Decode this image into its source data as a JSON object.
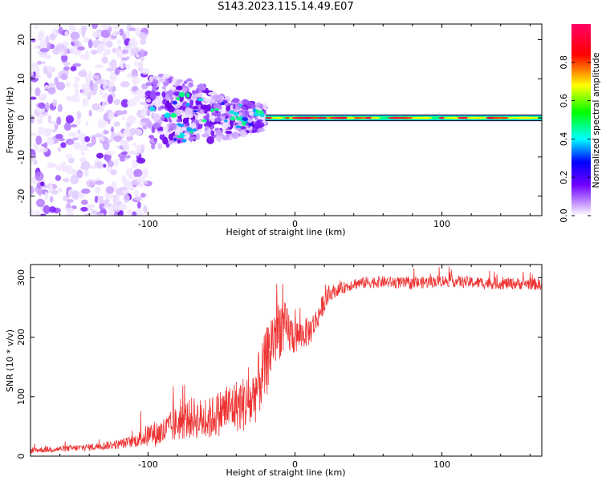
{
  "chart_data": [
    {
      "type": "heatmap",
      "title": "S143.2023.115.14.49.E07",
      "xlabel": "Height of straight line (km)",
      "ylabel": "Frequency (Hz)",
      "xlim": [
        -180,
        168
      ],
      "ylim": [
        -25,
        24
      ],
      "xticks": [
        "-100",
        "0",
        "100"
      ],
      "xtick_values": [
        -100,
        0,
        100
      ],
      "yticks": [
        "-20",
        "-10",
        "0",
        "10",
        "20"
      ],
      "ytick_values": [
        -20,
        -10,
        0,
        10,
        20
      ],
      "colorbar": {
        "label": "Normalized spectral amplitude",
        "range": [
          0,
          1
        ],
        "ticks": [
          "0.0",
          "0.2",
          "0.4",
          "0.6",
          "0.8"
        ],
        "tick_values": [
          0.0,
          0.2,
          0.4,
          0.6,
          0.8
        ],
        "colormap": [
          "#f0f0f8",
          "#8000ff",
          "#0000ff",
          "#00ffff",
          "#00ff00",
          "#ffff00",
          "#ff0000",
          "#ff0080"
        ]
      },
      "features": [
        {
          "x_range": [
            -180,
            -100
          ],
          "freq_spread": 24,
          "level": 0.12
        },
        {
          "x_range": [
            -100,
            -20
          ],
          "freq_spread_start": 10,
          "freq_spread_end": 3,
          "level": 0.3
        },
        {
          "x_range": [
            -20,
            168
          ],
          "freq": 0,
          "level": 0.75
        }
      ]
    },
    {
      "type": "line",
      "title": "",
      "xlabel": "Height of straight line (km)",
      "ylabel": "SNR (10 * v/v)",
      "xlim": [
        -180,
        168
      ],
      "ylim": [
        0,
        322
      ],
      "xticks": [
        "-100",
        "0",
        "100"
      ],
      "xtick_values": [
        -100,
        0,
        100
      ],
      "yticks": [
        "0",
        "100",
        "200",
        "300"
      ],
      "ytick_values": [
        0,
        100,
        200,
        300
      ],
      "series": [
        {
          "name": "SNR",
          "color": "#ee3333",
          "x": [
            -180,
            -160,
            -140,
            -120,
            -110,
            -100,
            -90,
            -80,
            -70,
            -60,
            -50,
            -40,
            -30,
            -25,
            -20,
            -15,
            -10,
            -5,
            0,
            5,
            10,
            15,
            20,
            25,
            30,
            40,
            50,
            60,
            80,
            100,
            120,
            140,
            160,
            168
          ],
          "y": [
            10,
            12,
            15,
            20,
            25,
            35,
            40,
            55,
            65,
            60,
            75,
            85,
            90,
            120,
            150,
            200,
            220,
            210,
            200,
            205,
            210,
            230,
            260,
            275,
            280,
            290,
            292,
            293,
            290,
            295,
            292,
            290,
            290,
            288
          ],
          "noise": [
            5,
            5,
            6,
            8,
            10,
            20,
            25,
            30,
            35,
            35,
            40,
            45,
            50,
            55,
            60,
            60,
            55,
            40,
            30,
            25,
            25,
            20,
            18,
            12,
            10,
            10,
            10,
            10,
            10,
            10,
            10,
            10,
            10,
            10
          ]
        }
      ]
    }
  ]
}
